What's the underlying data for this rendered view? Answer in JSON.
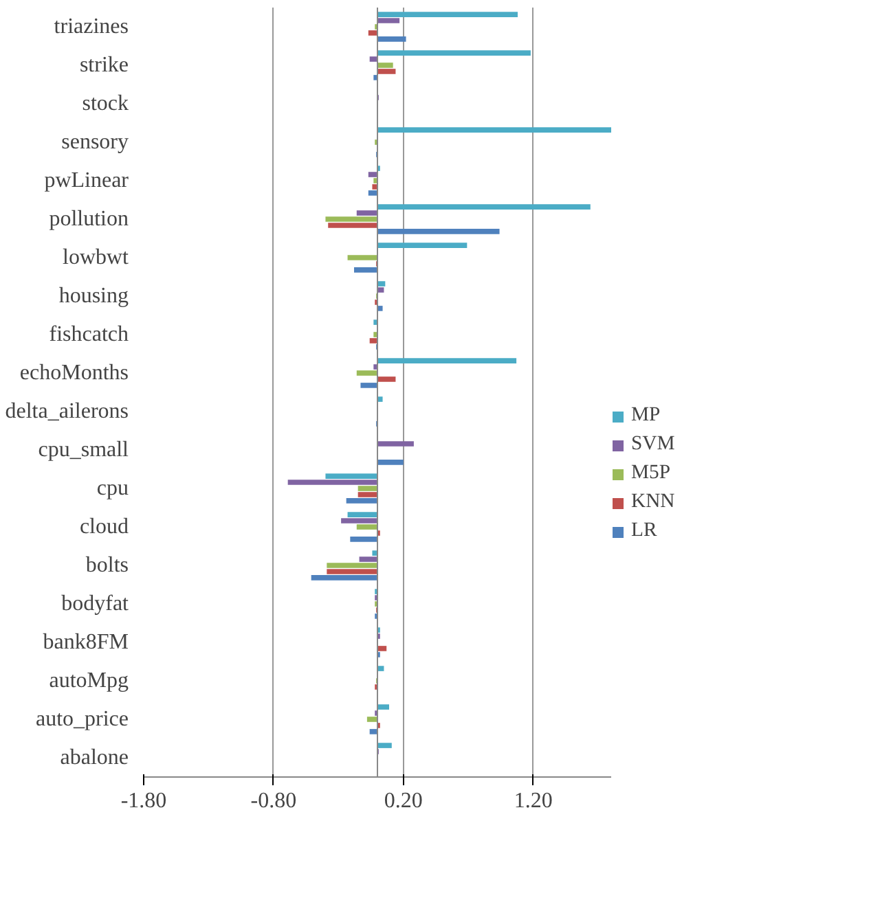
{
  "chart_data": {
    "type": "bar",
    "orientation": "horizontal",
    "categories": [
      "triazines",
      "strike",
      "stock",
      "sensory",
      "pwLinear",
      "pollution",
      "lowbwt",
      "housing",
      "fishcatch",
      "echoMonths",
      "delta_ailerons",
      "cpu_small",
      "cpu",
      "cloud",
      "bolts",
      "bodyfat",
      "bank8FM",
      "autoMpg",
      "auto_price",
      "abalone"
    ],
    "series": [
      {
        "name": "MP",
        "color": "#4bacc6",
        "values": [
          1.08,
          1.18,
          0,
          1.8,
          0.02,
          1.64,
          0.69,
          0.06,
          -0.03,
          1.07,
          0.04,
          0,
          -0.4,
          -0.23,
          -0.04,
          -0.02,
          0.02,
          0.05,
          0.09,
          0.11
        ]
      },
      {
        "name": "SVM",
        "color": "#8064a2",
        "values": [
          0.17,
          -0.06,
          0.01,
          0,
          -0.07,
          -0.16,
          0,
          0.05,
          0,
          -0.03,
          0,
          0.28,
          -0.69,
          -0.28,
          -0.14,
          -0.02,
          0.02,
          0,
          -0.02,
          0.01
        ]
      },
      {
        "name": "M5P",
        "color": "#9bbb59",
        "values": [
          -0.02,
          0.12,
          0,
          -0.02,
          -0.03,
          -0.4,
          -0.23,
          -0.01,
          -0.03,
          -0.16,
          0,
          0,
          -0.15,
          -0.16,
          -0.39,
          -0.02,
          0,
          -0.01,
          -0.08,
          0
        ]
      },
      {
        "name": "KNN",
        "color": "#c0504d",
        "values": [
          -0.07,
          0.14,
          0,
          0,
          -0.04,
          -0.38,
          -0.01,
          -0.02,
          -0.06,
          0.14,
          0,
          0,
          -0.15,
          0.02,
          -0.39,
          -0.01,
          0.07,
          -0.02,
          0.02,
          0
        ]
      },
      {
        "name": "LR",
        "color": "#4f81bd",
        "values": [
          0.22,
          -0.03,
          0,
          -0.01,
          -0.07,
          0.94,
          -0.18,
          0.04,
          -0.01,
          -0.13,
          -0.01,
          0.2,
          -0.24,
          -0.21,
          -0.51,
          -0.02,
          0.02,
          0,
          -0.06,
          0
        ]
      }
    ],
    "xlim": [
      -1.8,
      1.8
    ],
    "xticks": [
      {
        "value": -1.8,
        "label": "-1.80"
      },
      {
        "value": -0.8,
        "label": "-0.80"
      },
      {
        "value": 0.2,
        "label": "0.20"
      },
      {
        "value": 1.2,
        "label": "1.20"
      }
    ],
    "grid": "x",
    "legend": "right"
  }
}
